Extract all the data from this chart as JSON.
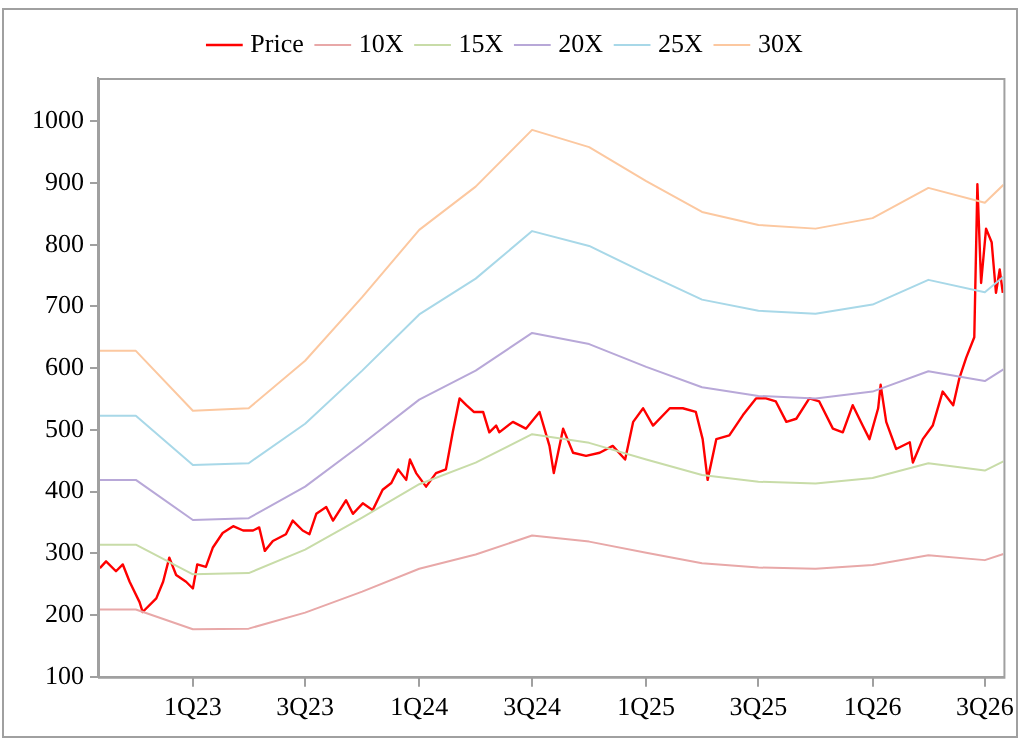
{
  "chart_data": {
    "type": "line",
    "legend": "top",
    "grid": false,
    "marker": "none",
    "line_style": "solid",
    "xlim": [
      "2022-08-01",
      "2026-07-31"
    ],
    "xticks": [
      {
        "value": "2023-01-01",
        "label": "1Q23"
      },
      {
        "value": "2023-07-01",
        "label": "3Q23"
      },
      {
        "value": "2024-01-01",
        "label": "1Q24"
      },
      {
        "value": "2024-07-01",
        "label": "3Q24"
      },
      {
        "value": "2025-01-01",
        "label": "1Q25"
      },
      {
        "value": "2025-07-01",
        "label": "3Q25"
      },
      {
        "value": "2026-01-01",
        "label": "1Q26"
      },
      {
        "value": "2026-07-01",
        "label": "3Q26"
      }
    ],
    "ylim": [
      100,
      1070
    ],
    "yticks": [
      100,
      200,
      300,
      400,
      500,
      600,
      700,
      800,
      900,
      1000
    ],
    "series": [
      {
        "name": "Price",
        "color": "#ff0000",
        "x": [
          "2022-08-04",
          "2022-08-14",
          "2022-08-30",
          "2022-09-10",
          "2022-09-21",
          "2022-10-07",
          "2022-10-12",
          "2022-11-03",
          "2022-11-14",
          "2022-11-24",
          "2022-12-05",
          "2022-12-21",
          "2023-01-01",
          "2023-01-08",
          "2023-01-22",
          "2023-02-02",
          "2023-02-18",
          "2023-03-07",
          "2023-03-23",
          "2023-04-08",
          "2023-04-18",
          "2023-04-27",
          "2023-05-10",
          "2023-05-31",
          "2023-06-11",
          "2023-06-27",
          "2023-07-08",
          "2023-07-19",
          "2023-08-04",
          "2023-08-15",
          "2023-09-05",
          "2023-09-16",
          "2023-10-02",
          "2023-10-18",
          "2023-11-03",
          "2023-11-17",
          "2023-11-28",
          "2023-12-11",
          "2023-12-17",
          "2023-12-27",
          "2024-01-12",
          "2024-01-28",
          "2024-02-13",
          "2024-02-24",
          "2024-03-06",
          "2024-03-17",
          "2024-03-29",
          "2024-04-13",
          "2024-04-23",
          "2024-05-04",
          "2024-05-09",
          "2024-05-31",
          "2024-06-21",
          "2024-07-13",
          "2024-07-29",
          "2024-08-05",
          "2024-08-20",
          "2024-09-05",
          "2024-09-26",
          "2024-10-18",
          "2024-11-08",
          "2024-11-28",
          "2024-12-11",
          "2024-12-27",
          "2025-01-12",
          "2025-02-08",
          "2025-03-01",
          "2025-03-22",
          "2025-04-02",
          "2025-04-10",
          "2025-04-24",
          "2025-05-15",
          "2025-06-06",
          "2025-06-27",
          "2025-07-13",
          "2025-07-29",
          "2025-08-15",
          "2025-08-31",
          "2025-09-21",
          "2025-10-07",
          "2025-10-29",
          "2025-11-14",
          "2025-11-30",
          "2025-12-16",
          "2025-12-27",
          "2026-01-10",
          "2026-01-14",
          "2026-01-23",
          "2026-02-08",
          "2026-03-02",
          "2026-03-07",
          "2026-03-23",
          "2026-04-08",
          "2026-04-24",
          "2026-05-11",
          "2026-05-21",
          "2026-06-01",
          "2026-06-14",
          "2026-06-19",
          "2026-06-25",
          "2026-07-03",
          "2026-07-12",
          "2026-07-19",
          "2026-07-25",
          "2026-07-30"
        ],
        "values": [
          276,
          287,
          271,
          282,
          254,
          221,
          205,
          227,
          254,
          293,
          265,
          254,
          243,
          282,
          278,
          309,
          333,
          344,
          337,
          337,
          342,
          304,
          320,
          331,
          353,
          337,
          331,
          364,
          375,
          353,
          386,
          364,
          381,
          370,
          403,
          414,
          436,
          419,
          452,
          430,
          408,
          430,
          436,
          496,
          551,
          540,
          529,
          529,
          496,
          507,
          496,
          513,
          502,
          529,
          474,
          430,
          502,
          463,
          458,
          463,
          474,
          452,
          513,
          535,
          507,
          535,
          535,
          529,
          485,
          419,
          485,
          491,
          524,
          551,
          551,
          546,
          513,
          518,
          551,
          546,
          502,
          496,
          540,
          507,
          485,
          535,
          573,
          513,
          469,
          480,
          447,
          485,
          507,
          562,
          540,
          584,
          617,
          650,
          898,
          738,
          826,
          804,
          722,
          760,
          722
        ]
      },
      {
        "name": "10X",
        "color": "#e8a8a8",
        "x": [
          "2022-08-01",
          "2022-10-01",
          "2023-01-01",
          "2023-04-01",
          "2023-07-01",
          "2023-10-01",
          "2024-01-01",
          "2024-04-01",
          "2024-07-01",
          "2024-10-01",
          "2025-01-01",
          "2025-04-01",
          "2025-07-01",
          "2025-10-01",
          "2026-01-01",
          "2026-04-01",
          "2026-07-01",
          "2026-07-31"
        ],
        "values": [
          209,
          209,
          177,
          178,
          204,
          238,
          275,
          298,
          329,
          319,
          301,
          284,
          277,
          275,
          281,
          297,
          289,
          299
        ]
      },
      {
        "name": "15X",
        "color": "#c8dca8",
        "x": [
          "2022-08-01",
          "2022-10-01",
          "2023-01-01",
          "2023-04-01",
          "2023-07-01",
          "2023-10-01",
          "2024-01-01",
          "2024-04-01",
          "2024-07-01",
          "2024-10-01",
          "2025-01-01",
          "2025-04-01",
          "2025-07-01",
          "2025-10-01",
          "2026-01-01",
          "2026-04-01",
          "2026-07-01",
          "2026-07-31"
        ],
        "values": [
          314,
          314,
          266,
          268,
          306,
          358,
          412,
          447,
          493,
          479,
          452,
          427,
          416,
          413,
          422,
          446,
          434,
          449
        ]
      },
      {
        "name": "20X",
        "color": "#b8a8d8",
        "x": [
          "2022-08-01",
          "2022-10-01",
          "2023-01-01",
          "2023-04-01",
          "2023-07-01",
          "2023-10-01",
          "2024-01-01",
          "2024-04-01",
          "2024-07-01",
          "2024-10-01",
          "2025-01-01",
          "2025-04-01",
          "2025-07-01",
          "2025-10-01",
          "2026-01-01",
          "2026-04-01",
          "2026-07-01",
          "2026-07-31"
        ],
        "values": [
          419,
          419,
          354,
          357,
          408,
          477,
          549,
          596,
          657,
          639,
          602,
          569,
          555,
          551,
          562,
          595,
          579,
          598
        ]
      },
      {
        "name": "25X",
        "color": "#a8d8e8",
        "x": [
          "2022-08-01",
          "2022-10-01",
          "2023-01-01",
          "2023-04-01",
          "2023-07-01",
          "2023-10-01",
          "2024-01-01",
          "2024-04-01",
          "2024-07-01",
          "2024-10-01",
          "2025-01-01",
          "2025-04-01",
          "2025-07-01",
          "2025-10-01",
          "2026-01-01",
          "2026-04-01",
          "2026-07-01",
          "2026-07-31"
        ],
        "values": [
          523,
          523,
          443,
          446,
          510,
          596,
          687,
          745,
          822,
          798,
          753,
          711,
          693,
          688,
          703,
          743,
          723,
          748
        ]
      },
      {
        "name": "30X",
        "color": "#fcc8a0",
        "x": [
          "2022-08-01",
          "2022-10-01",
          "2023-01-01",
          "2023-04-01",
          "2023-07-01",
          "2023-10-01",
          "2024-01-01",
          "2024-04-01",
          "2024-07-01",
          "2024-10-01",
          "2025-01-01",
          "2025-04-01",
          "2025-07-01",
          "2025-10-01",
          "2026-01-01",
          "2026-04-01",
          "2026-07-01",
          "2026-07-31"
        ],
        "values": [
          628,
          628,
          531,
          535,
          612,
          715,
          824,
          894,
          986,
          958,
          903,
          853,
          832,
          826,
          843,
          892,
          868,
          897
        ]
      }
    ]
  }
}
